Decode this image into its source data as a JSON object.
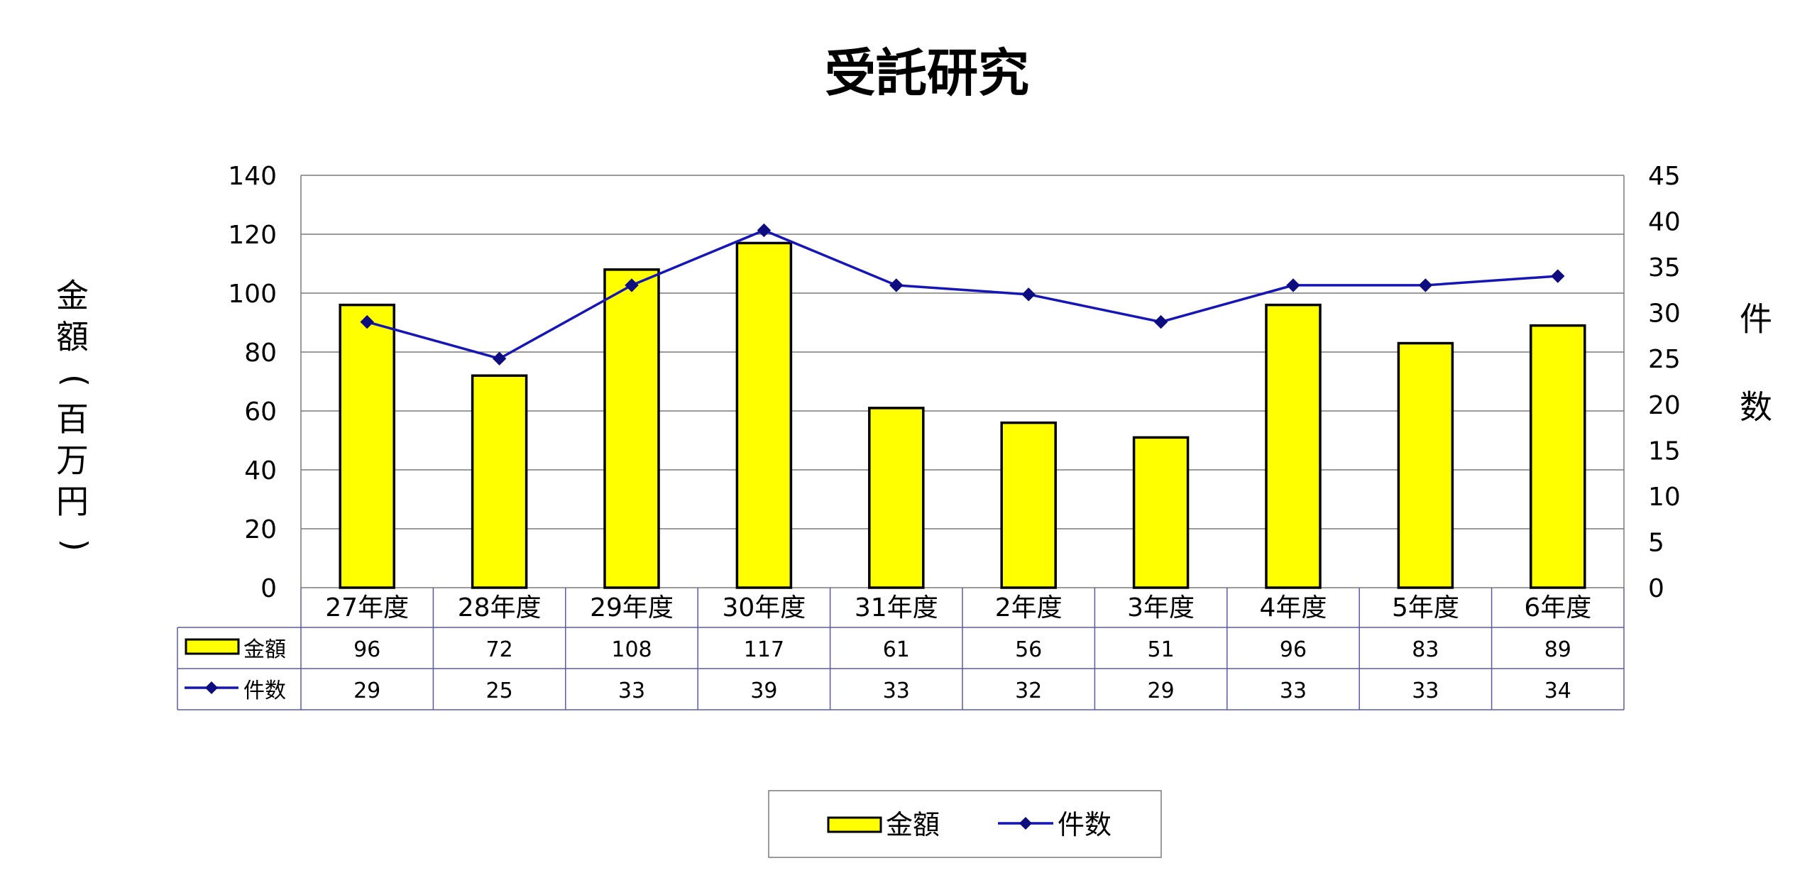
{
  "chart_data": {
    "type": "bar",
    "title": "受託研究",
    "categories": [
      "27年度",
      "28年度",
      "29年度",
      "30年度",
      "31年度",
      "2年度",
      "3年度",
      "4年度",
      "5年度",
      "6年度"
    ],
    "series": [
      {
        "name": "金額",
        "type": "bar",
        "axis": "left",
        "color": "#FFFF00",
        "values": [
          96,
          72,
          108,
          117,
          61,
          56,
          51,
          96,
          83,
          89
        ]
      },
      {
        "name": "件数",
        "type": "line",
        "axis": "right",
        "color": "#1515B8",
        "marker_color": "#0D0D80",
        "values": [
          29,
          25,
          33,
          39,
          33,
          32,
          29,
          33,
          33,
          34
        ]
      }
    ],
    "ylabel_left": "金額(百万円)",
    "ylabel_right": "件数",
    "ylim_left": [
      0,
      140
    ],
    "yticks_left": [
      0,
      20,
      40,
      60,
      80,
      100,
      120,
      140
    ],
    "ylim_right": [
      0,
      45
    ],
    "yticks_right": [
      0,
      5,
      10,
      15,
      20,
      25,
      30,
      35,
      40,
      45
    ],
    "grid": true,
    "data_table": true,
    "legend_position": "bottom"
  }
}
